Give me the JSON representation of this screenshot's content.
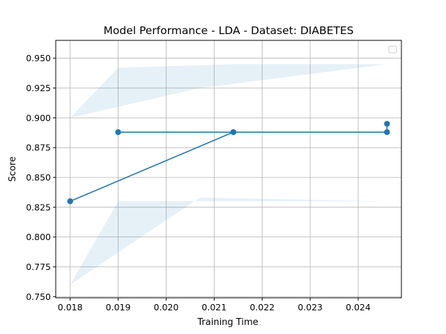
{
  "chart_data": {
    "type": "line",
    "title": "Model Performance - LDA - Dataset: DIABETES",
    "xlabel": "Training Time",
    "ylabel": "Score",
    "xlim": [
      0.0177,
      0.0249
    ],
    "ylim": [
      0.749,
      0.965
    ],
    "xticks": [
      0.018,
      0.019,
      0.02,
      0.021,
      0.022,
      0.023,
      0.024
    ],
    "xtick_labels": [
      "0.018",
      "0.019",
      "0.020",
      "0.021",
      "0.022",
      "0.023",
      "0.024"
    ],
    "yticks": [
      0.75,
      0.775,
      0.8,
      0.825,
      0.85,
      0.875,
      0.9,
      0.925,
      0.95
    ],
    "ytick_labels": [
      "0.750",
      "0.775",
      "0.800",
      "0.825",
      "0.850",
      "0.875",
      "0.900",
      "0.925",
      "0.950"
    ],
    "grid": true,
    "legend": "top-right",
    "colors": {
      "line": "#1f77b4",
      "band": "#1f77b4",
      "grid": "#b0b0b0"
    },
    "series": [
      {
        "values_x": [
          0.018,
          0.0214,
          0.019,
          0.0214,
          0.0246,
          0.0246
        ],
        "values_y": [
          0.83,
          0.888,
          0.888,
          0.888,
          0.888,
          0.895
        ],
        "band": {
          "x": [
            0.018,
            0.0207,
            0.0246,
            0.0246,
            0.0214,
            0.019,
            0.018
          ],
          "upper": [
            0.9,
            0.925,
            0.945,
            0.945,
            0.945,
            0.942,
            0.9
          ],
          "lower": [
            0.76,
            0.833,
            0.83,
            0.83,
            0.83,
            0.83,
            0.76
          ]
        }
      }
    ]
  }
}
